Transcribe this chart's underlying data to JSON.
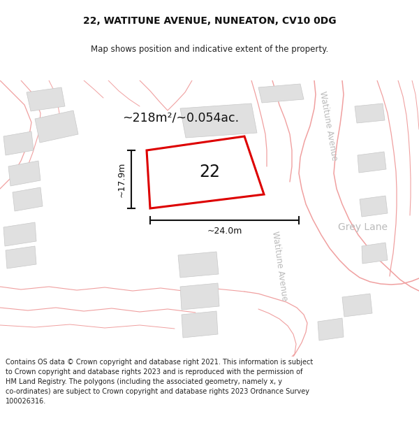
{
  "title": "22, WATITUNE AVENUE, NUNEATON, CV10 0DG",
  "subtitle": "Map shows position and indicative extent of the property.",
  "footer_text": "Contains OS data © Crown copyright and database right 2021. This information is subject\nto Crown copyright and database rights 2023 and is reproduced with the permission of\nHM Land Registry. The polygons (including the associated geometry, namely x, y\nco-ordinates) are subject to Crown copyright and database rights 2023 Ordnance Survey\n100026316.",
  "area_label": "~218m²/~0.054ac.",
  "number_label": "22",
  "dim_height_label": "~17.9m",
  "dim_width_label": "~24.0m",
  "street_label_upper": "Watitune Avenue",
  "street_label_lower": "Watitune Avenue",
  "grey_lane_label": "Grey Lane",
  "plot_edge_color": "#dd0000",
  "plot_fill_color": "#ffffff",
  "building_fill": "#e0e0e0",
  "building_edge": "#c8c8c8",
  "road_line_color": "#f0a0a0",
  "dim_color": "#111111",
  "title_color": "#111111",
  "subtitle_color": "#222222",
  "street_text_color": "#bbbbbb",
  "label_color": "#111111",
  "footer_color": "#222222",
  "title_fontsize": 10,
  "subtitle_fontsize": 8.5,
  "area_fontsize": 12.5,
  "number_fontsize": 17,
  "dim_fontsize": 9,
  "street_fontsize": 8.5,
  "grey_lane_fontsize": 10,
  "footer_fontsize": 7,
  "figsize": [
    6.0,
    6.25
  ],
  "dpi": 100
}
